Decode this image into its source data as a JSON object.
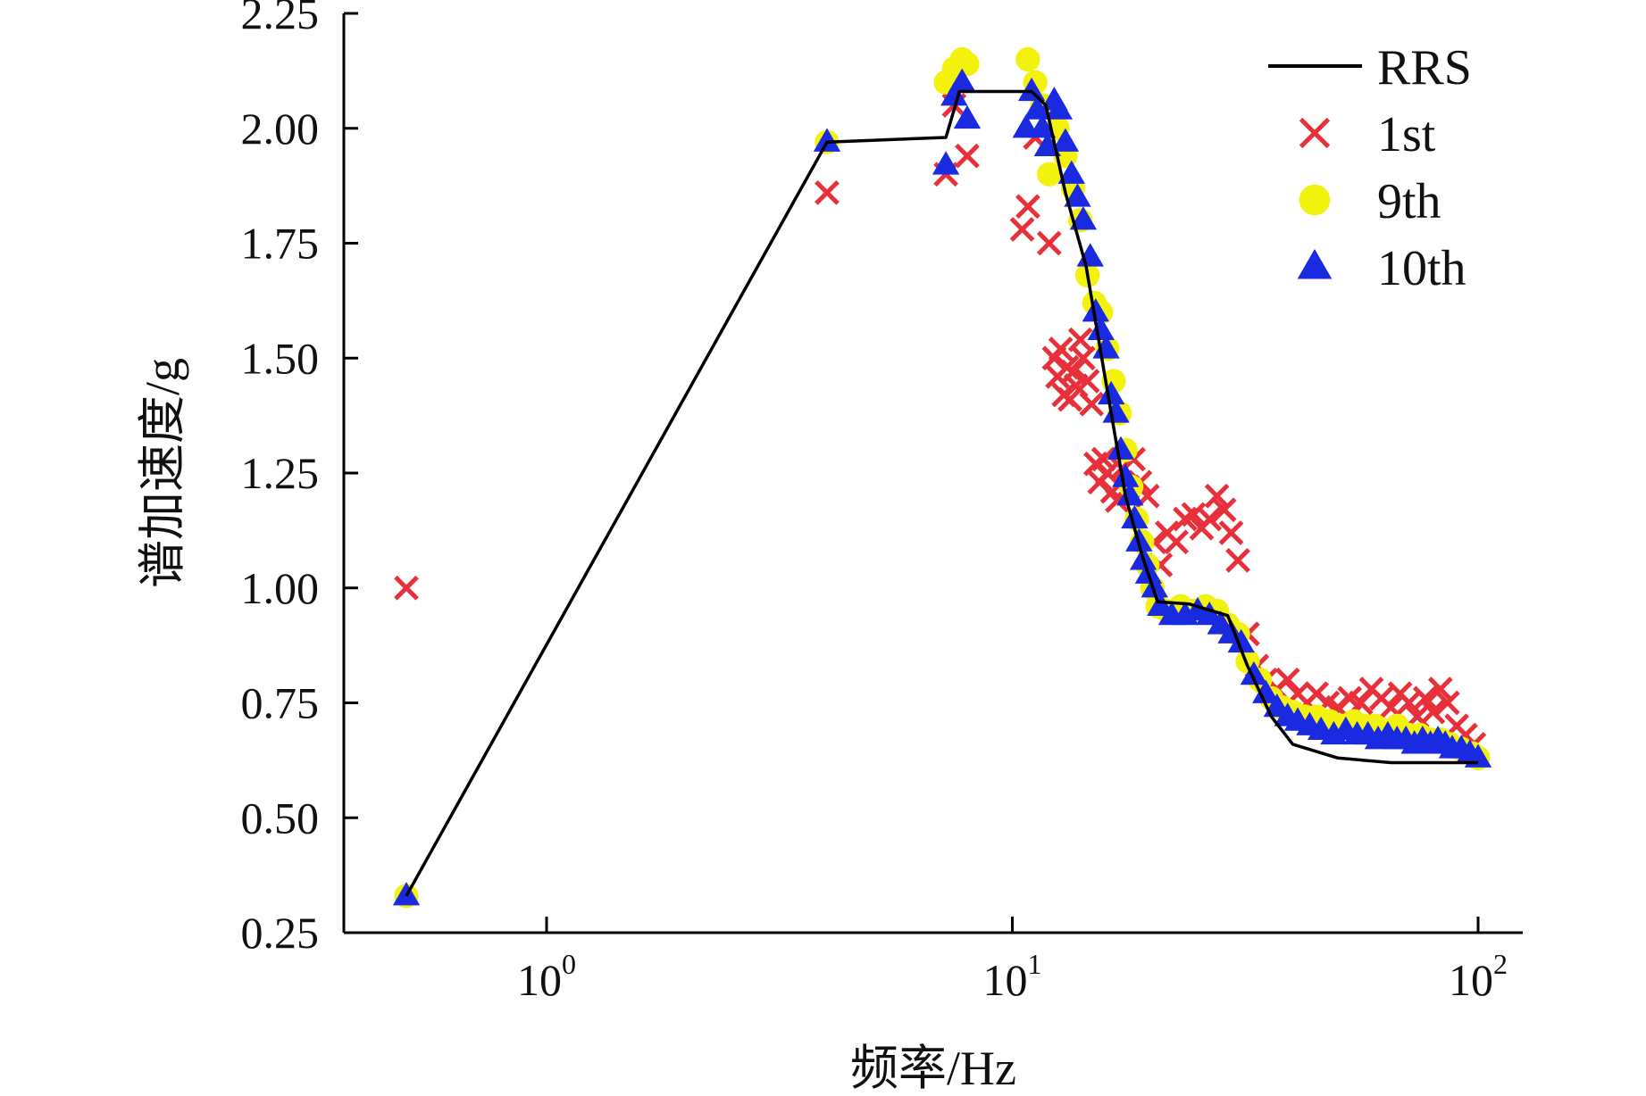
{
  "chart_data": {
    "type": "scatter",
    "x_scale": "log",
    "xlim": [
      0.3,
      130
    ],
    "ylim": [
      0.25,
      2.25
    ],
    "xlabel": "频率/Hz",
    "ylabel": "谱加速度/g",
    "x_ticks": [
      {
        "value": 1,
        "base": "10",
        "exp": "0"
      },
      {
        "value": 10,
        "base": "10",
        "exp": "1"
      },
      {
        "value": 100,
        "base": "10",
        "exp": "2"
      }
    ],
    "y_ticks": [
      "0.25",
      "0.50",
      "0.75",
      "1.00",
      "1.25",
      "1.50",
      "1.75",
      "2.00",
      "2.25"
    ],
    "grid": false,
    "legend_position": "top-right",
    "series": [
      {
        "name": "RRS",
        "kind": "line",
        "color": "#000000",
        "points": [
          [
            0.5,
            0.33
          ],
          [
            4,
            1.97
          ],
          [
            7.2,
            1.98
          ],
          [
            7.7,
            2.08
          ],
          [
            11,
            2.08
          ],
          [
            11.8,
            2.05
          ],
          [
            13,
            1.86
          ],
          [
            14.4,
            1.7
          ],
          [
            16.3,
            1.38
          ],
          [
            17.5,
            1.2
          ],
          [
            19,
            1.07
          ],
          [
            20.5,
            0.97
          ],
          [
            24,
            0.965
          ],
          [
            29,
            0.94
          ],
          [
            32,
            0.83
          ],
          [
            36,
            0.72
          ],
          [
            40,
            0.66
          ],
          [
            50,
            0.63
          ],
          [
            65,
            0.62
          ],
          [
            100,
            0.62
          ]
        ]
      },
      {
        "name": "1st",
        "kind": "marker",
        "marker": "cross",
        "color": "#e8303a",
        "points": [
          [
            0.5,
            1.0
          ],
          [
            4,
            1.86
          ],
          [
            7.2,
            1.9
          ],
          [
            7.5,
            2.05
          ],
          [
            8,
            1.94
          ],
          [
            10.5,
            1.78
          ],
          [
            10.8,
            1.83
          ],
          [
            11.2,
            1.98
          ],
          [
            12,
            1.75
          ],
          [
            12.3,
            1.5
          ],
          [
            12.5,
            1.46
          ],
          [
            12.7,
            1.52
          ],
          [
            12.9,
            1.42
          ],
          [
            13.1,
            1.48
          ],
          [
            13.3,
            1.41
          ],
          [
            13.5,
            1.47
          ],
          [
            13.7,
            1.44
          ],
          [
            14,
            1.54
          ],
          [
            14.2,
            1.5
          ],
          [
            14.5,
            1.45
          ],
          [
            14.8,
            1.4
          ],
          [
            15.1,
            1.27
          ],
          [
            15.4,
            1.23
          ],
          [
            15.7,
            1.28
          ],
          [
            16,
            1.25
          ],
          [
            16.4,
            1.21
          ],
          [
            16.8,
            1.19
          ],
          [
            17.2,
            1.26
          ],
          [
            17.7,
            1.22
          ],
          [
            18.2,
            1.28
          ],
          [
            18.8,
            1.23
          ],
          [
            19.5,
            1.2
          ],
          [
            20.2,
            1.1
          ],
          [
            20.8,
            1.05
          ],
          [
            21.5,
            1.12
          ],
          [
            22.5,
            1.1
          ],
          [
            23.5,
            1.15
          ],
          [
            24.5,
            1.16
          ],
          [
            25.5,
            1.13
          ],
          [
            26.5,
            1.15
          ],
          [
            27.5,
            1.2
          ],
          [
            28.5,
            1.17
          ],
          [
            29.5,
            1.12
          ],
          [
            30.5,
            1.06
          ],
          [
            32,
            0.9
          ],
          [
            33.5,
            0.83
          ],
          [
            35,
            0.8
          ],
          [
            37,
            0.78
          ],
          [
            39,
            0.8
          ],
          [
            41,
            0.77
          ],
          [
            43,
            0.75
          ],
          [
            45,
            0.77
          ],
          [
            47.5,
            0.75
          ],
          [
            50,
            0.74
          ],
          [
            53,
            0.76
          ],
          [
            56,
            0.75
          ],
          [
            59,
            0.78
          ],
          [
            62,
            0.76
          ],
          [
            65,
            0.74
          ],
          [
            68,
            0.77
          ],
          [
            71,
            0.75
          ],
          [
            74,
            0.72
          ],
          [
            77,
            0.76
          ],
          [
            80,
            0.73
          ],
          [
            83,
            0.78
          ],
          [
            86,
            0.75
          ],
          [
            90,
            0.7
          ],
          [
            94,
            0.68
          ],
          [
            98,
            0.66
          ]
        ]
      },
      {
        "name": "9th",
        "kind": "marker",
        "marker": "circle",
        "color": "#f2f20c",
        "points": [
          [
            0.5,
            0.33
          ],
          [
            4,
            1.97
          ],
          [
            7.2,
            2.1
          ],
          [
            7.5,
            2.13
          ],
          [
            7.8,
            2.15
          ],
          [
            8,
            2.14
          ],
          [
            10.8,
            2.15
          ],
          [
            11.2,
            2.1
          ],
          [
            11.6,
            2.05
          ],
          [
            12,
            1.9
          ],
          [
            12.5,
            2.0
          ],
          [
            13,
            1.94
          ],
          [
            13.5,
            1.87
          ],
          [
            14,
            1.8
          ],
          [
            14.5,
            1.68
          ],
          [
            15,
            1.62
          ],
          [
            15.5,
            1.6
          ],
          [
            16,
            1.52
          ],
          [
            16.5,
            1.45
          ],
          [
            17,
            1.38
          ],
          [
            17.5,
            1.3
          ],
          [
            18,
            1.22
          ],
          [
            18.5,
            1.15
          ],
          [
            19,
            1.1
          ],
          [
            19.5,
            1.05
          ],
          [
            20,
            1.0
          ],
          [
            20.5,
            0.96
          ],
          [
            21.5,
            0.95
          ],
          [
            23,
            0.96
          ],
          [
            24.5,
            0.95
          ],
          [
            26,
            0.96
          ],
          [
            27.5,
            0.95
          ],
          [
            29,
            0.92
          ],
          [
            30.5,
            0.9
          ],
          [
            32,
            0.84
          ],
          [
            34,
            0.8
          ],
          [
            36,
            0.76
          ],
          [
            38,
            0.74
          ],
          [
            40,
            0.73
          ],
          [
            42.5,
            0.72
          ],
          [
            45,
            0.72
          ],
          [
            48,
            0.71
          ],
          [
            51,
            0.7
          ],
          [
            54,
            0.71
          ],
          [
            57,
            0.7
          ],
          [
            60,
            0.7
          ],
          [
            63,
            0.69
          ],
          [
            67,
            0.7
          ],
          [
            71,
            0.68
          ],
          [
            75,
            0.68
          ],
          [
            79,
            0.67
          ],
          [
            83,
            0.67
          ],
          [
            87,
            0.66
          ],
          [
            92,
            0.65
          ],
          [
            97,
            0.64
          ],
          [
            100,
            0.63
          ]
        ]
      },
      {
        "name": "10th",
        "kind": "marker",
        "marker": "triangle",
        "color": "#1a2ae0",
        "points": [
          [
            0.5,
            0.33
          ],
          [
            4,
            1.97
          ],
          [
            7.2,
            1.92
          ],
          [
            7.5,
            2.07
          ],
          [
            7.8,
            2.1
          ],
          [
            8,
            2.02
          ],
          [
            10.7,
            2.0
          ],
          [
            11,
            2.08
          ],
          [
            11.3,
            2.04
          ],
          [
            11.6,
            2.0
          ],
          [
            11.9,
            1.96
          ],
          [
            12.3,
            2.06
          ],
          [
            12.6,
            2.04
          ],
          [
            13,
            1.97
          ],
          [
            13.4,
            1.9
          ],
          [
            13.8,
            1.85
          ],
          [
            14.2,
            1.8
          ],
          [
            14.7,
            1.72
          ],
          [
            15.1,
            1.6
          ],
          [
            15.5,
            1.56
          ],
          [
            15.9,
            1.52
          ],
          [
            16.3,
            1.42
          ],
          [
            16.7,
            1.38
          ],
          [
            17.1,
            1.3
          ],
          [
            17.5,
            1.24
          ],
          [
            17.9,
            1.2
          ],
          [
            18.3,
            1.15
          ],
          [
            18.7,
            1.1
          ],
          [
            19.1,
            1.06
          ],
          [
            19.6,
            1.03
          ],
          [
            20.2,
            1.0
          ],
          [
            20.8,
            0.96
          ],
          [
            22,
            0.94
          ],
          [
            23.5,
            0.94
          ],
          [
            25,
            0.95
          ],
          [
            26.5,
            0.94
          ],
          [
            28,
            0.92
          ],
          [
            29.5,
            0.9
          ],
          [
            31,
            0.88
          ],
          [
            33,
            0.81
          ],
          [
            35,
            0.77
          ],
          [
            37,
            0.74
          ],
          [
            39,
            0.72
          ],
          [
            41,
            0.71
          ],
          [
            43.5,
            0.7
          ],
          [
            46,
            0.69
          ],
          [
            49,
            0.68
          ],
          [
            52,
            0.69
          ],
          [
            55,
            0.68
          ],
          [
            58,
            0.68
          ],
          [
            61,
            0.67
          ],
          [
            64,
            0.68
          ],
          [
            67,
            0.67
          ],
          [
            70,
            0.67
          ],
          [
            73,
            0.66
          ],
          [
            76,
            0.67
          ],
          [
            79,
            0.66
          ],
          [
            82,
            0.67
          ],
          [
            85,
            0.66
          ],
          [
            88,
            0.65
          ],
          [
            92,
            0.65
          ],
          [
            96,
            0.64
          ],
          [
            100,
            0.63
          ]
        ]
      }
    ]
  }
}
